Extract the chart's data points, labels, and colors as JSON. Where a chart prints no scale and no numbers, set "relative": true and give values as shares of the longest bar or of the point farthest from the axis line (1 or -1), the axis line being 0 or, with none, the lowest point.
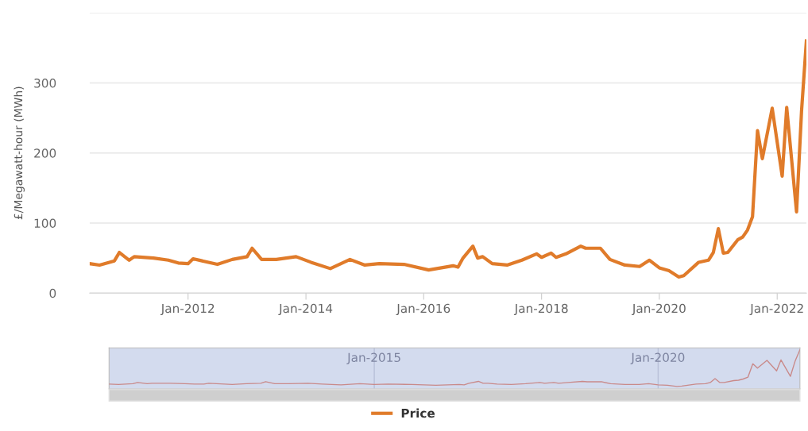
{
  "chart_data": [
    {
      "type": "line",
      "ylabel": "£/Megawatt-hour (MWh)",
      "legend": "bottom",
      "grid": "y",
      "x": [
        "2010-05",
        "2010-07",
        "2010-10",
        "2010-11",
        "2011-01",
        "2011-02",
        "2011-06",
        "2011-09",
        "2011-11",
        "2012-01",
        "2012-02",
        "2012-07",
        "2012-10",
        "2013-01",
        "2013-02",
        "2013-04",
        "2013-07",
        "2013-11",
        "2014-02",
        "2014-06",
        "2014-10",
        "2015-01",
        "2015-04",
        "2015-09",
        "2016-02",
        "2016-07",
        "2016-08",
        "2016-09",
        "2016-11",
        "2016-12",
        "2017-01",
        "2017-03",
        "2017-06",
        "2017-09",
        "2017-12",
        "2018-01",
        "2018-03",
        "2018-04",
        "2018-06",
        "2018-09",
        "2018-10",
        "2019-01",
        "2019-03",
        "2019-06",
        "2019-09",
        "2019-11",
        "2020-01",
        "2020-03",
        "2020-05",
        "2020-06",
        "2020-09",
        "2020-11",
        "2020-12",
        "2021-01",
        "2021-02",
        "2021-03",
        "2021-05",
        "2021-06",
        "2021-07",
        "2021-08",
        "2021-09",
        "2021-10",
        "2021-12",
        "2022-02",
        "2022-03",
        "2022-05",
        "2022-06",
        "2022-07"
      ],
      "series": [
        {
          "name": "Price",
          "color": "#e07b2a",
          "values": [
            42,
            40,
            46,
            58,
            47,
            52,
            50,
            47,
            43,
            42,
            49,
            41,
            48,
            52,
            64,
            48,
            48,
            52,
            44,
            35,
            48,
            40,
            42,
            41,
            33,
            39,
            37,
            50,
            67,
            50,
            52,
            42,
            40,
            47,
            56,
            51,
            57,
            51,
            56,
            67,
            64,
            64,
            48,
            40,
            38,
            47,
            36,
            32,
            23,
            25,
            44,
            47,
            58,
            92,
            57,
            58,
            76,
            80,
            90,
            109,
            232,
            192,
            264,
            167,
            265,
            116,
            260,
            360
          ]
        }
      ],
      "xlim": [
        "2010-05",
        "2022-07"
      ],
      "xticks": [
        {
          "value": "2012-01",
          "label": "Jan-2012"
        },
        {
          "value": "2014-01",
          "label": "Jan-2014"
        },
        {
          "value": "2016-01",
          "label": "Jan-2016"
        },
        {
          "value": "2018-01",
          "label": "Jan-2018"
        },
        {
          "value": "2020-01",
          "label": "Jan-2020"
        },
        {
          "value": "2022-01",
          "label": "Jan-2022"
        }
      ],
      "ylim": [
        0,
        400
      ],
      "yticks": [
        0,
        100,
        200,
        300,
        {
          "value": 400,
          "label": null
        }
      ]
    },
    {
      "type": "line",
      "relative": true,
      "tick_labels": "x",
      "x": [
        "2010-05",
        "2010-07",
        "2010-10",
        "2010-11",
        "2011-01",
        "2011-02",
        "2011-06",
        "2011-09",
        "2011-11",
        "2012-01",
        "2012-02",
        "2012-07",
        "2012-10",
        "2013-01",
        "2013-02",
        "2013-04",
        "2013-07",
        "2013-11",
        "2014-02",
        "2014-06",
        "2014-10",
        "2015-01",
        "2015-04",
        "2015-09",
        "2016-02",
        "2016-07",
        "2016-08",
        "2016-09",
        "2016-11",
        "2016-12",
        "2017-01",
        "2017-03",
        "2017-06",
        "2017-09",
        "2017-12",
        "2018-01",
        "2018-03",
        "2018-04",
        "2018-06",
        "2018-09",
        "2018-10",
        "2019-01",
        "2019-03",
        "2019-06",
        "2019-09",
        "2019-11",
        "2020-01",
        "2020-03",
        "2020-05",
        "2020-06",
        "2020-09",
        "2020-11",
        "2020-12",
        "2021-01",
        "2021-02",
        "2021-03",
        "2021-05",
        "2021-06",
        "2021-07",
        "2021-08",
        "2021-09",
        "2021-10",
        "2021-12",
        "2022-02",
        "2022-03",
        "2022-05",
        "2022-06",
        "2022-07"
      ],
      "series": [
        {
          "color": "#c98a8a",
          "values": [
            0.12,
            0.11,
            0.13,
            0.16,
            0.13,
            0.14,
            0.14,
            0.13,
            0.12,
            0.12,
            0.14,
            0.11,
            0.13,
            0.14,
            0.18,
            0.13,
            0.13,
            0.14,
            0.12,
            0.1,
            0.13,
            0.11,
            0.12,
            0.11,
            0.09,
            0.11,
            0.1,
            0.14,
            0.19,
            0.14,
            0.14,
            0.12,
            0.11,
            0.13,
            0.16,
            0.14,
            0.16,
            0.14,
            0.16,
            0.19,
            0.18,
            0.18,
            0.13,
            0.11,
            0.11,
            0.13,
            0.1,
            0.09,
            0.06,
            0.07,
            0.12,
            0.13,
            0.16,
            0.26,
            0.16,
            0.16,
            0.21,
            0.22,
            0.25,
            0.3,
            0.64,
            0.53,
            0.73,
            0.46,
            0.74,
            0.32,
            0.72,
            1
          ]
        }
      ],
      "xlim": [
        "2010-05",
        "2022-07"
      ],
      "xticks": [
        {
          "value": "2015-01",
          "label": "Jan-2015"
        },
        {
          "value": "2020-01",
          "label": "Jan-2020"
        }
      ],
      "grid": "x"
    }
  ]
}
